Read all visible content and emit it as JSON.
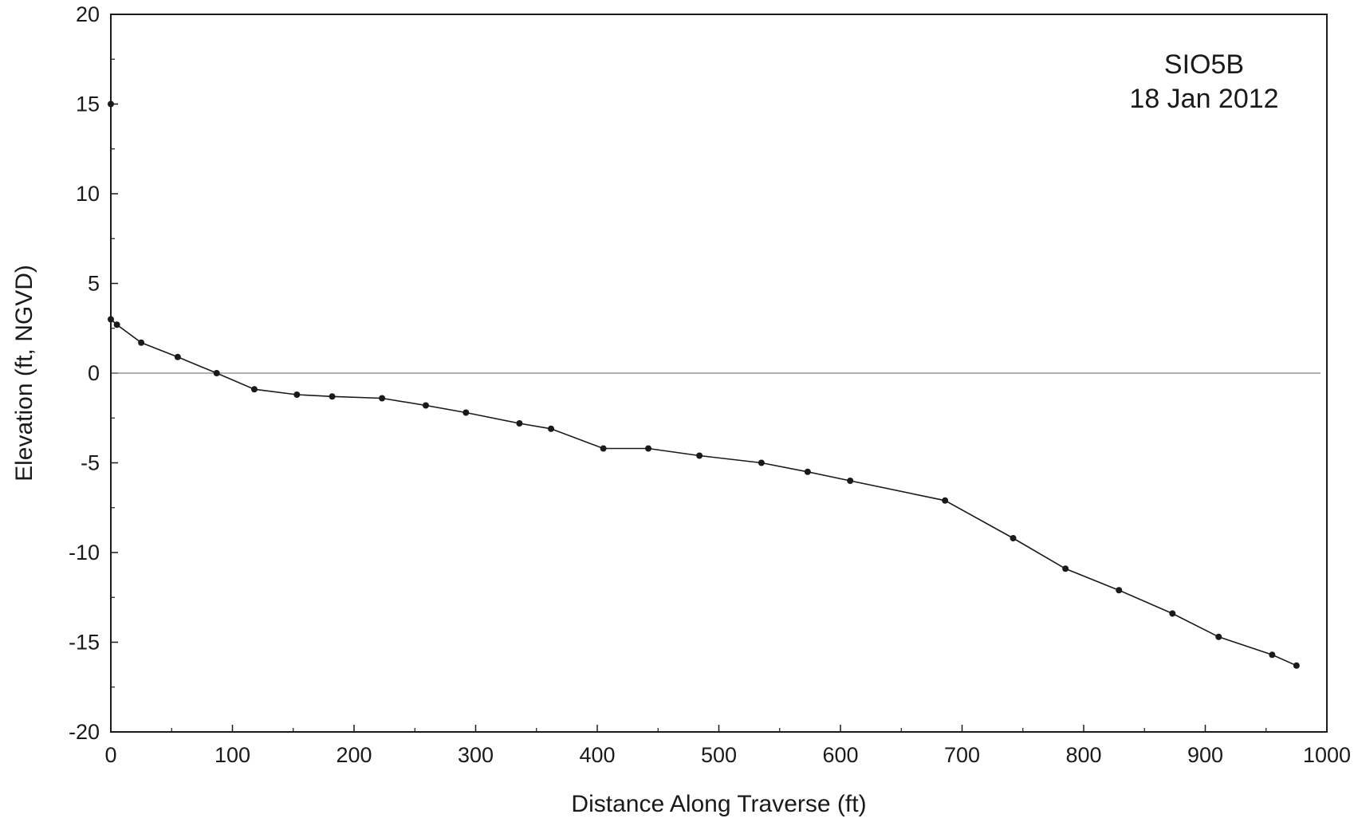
{
  "chart_data": {
    "type": "line",
    "title": "",
    "annotation": {
      "line1": "SIO5B",
      "line2": "18 Jan 2012",
      "placement": "top-right"
    },
    "xlabel": "Distance Along Traverse (ft)",
    "ylabel": "Elevation (ft, NGVD)",
    "xlim": [
      0,
      1000
    ],
    "ylim": [
      -20,
      20
    ],
    "x_ticks": [
      0,
      100,
      200,
      300,
      400,
      500,
      600,
      700,
      800,
      900,
      1000
    ],
    "y_ticks": [
      20,
      15,
      10,
      5,
      0,
      -5,
      -10,
      -15,
      -20
    ],
    "reference_line_y": 0,
    "grid": false,
    "legend": "none",
    "colors": {
      "line": "#1a1a1a",
      "reference": "#808080"
    },
    "series": [
      {
        "x": [
          0,
          0,
          5,
          25,
          55,
          87,
          118,
          153,
          182,
          223,
          259,
          292,
          336,
          362,
          405,
          442,
          484,
          535,
          573,
          608,
          686,
          742,
          785,
          829,
          873,
          911,
          955,
          975
        ],
        "y": [
          15.0,
          3.0,
          2.7,
          1.7,
          0.9,
          0.0,
          -0.9,
          -1.2,
          -1.3,
          -1.4,
          -1.8,
          -2.2,
          -2.8,
          -3.1,
          -4.2,
          -4.2,
          -4.6,
          -5.0,
          -5.5,
          -6.0,
          -7.1,
          -9.2,
          -10.9,
          -12.1,
          -13.4,
          -14.7,
          -15.7,
          -16.3
        ]
      }
    ]
  }
}
